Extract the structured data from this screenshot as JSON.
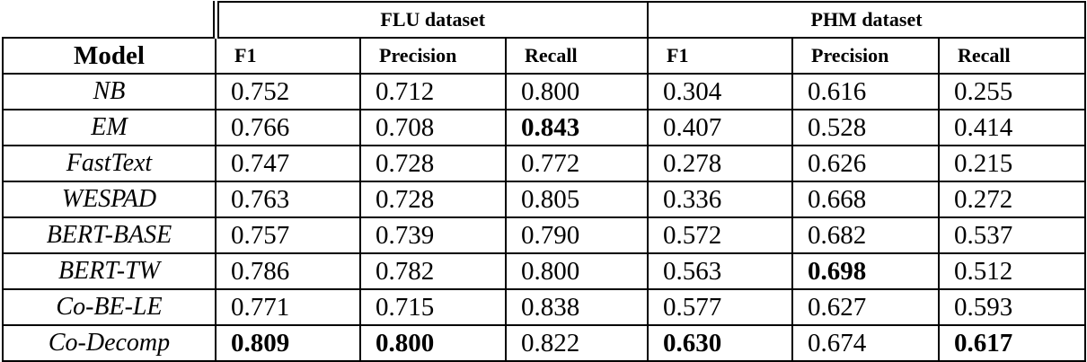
{
  "table": {
    "corner_label": "",
    "groups": {
      "flu": {
        "label": "FLU dataset"
      },
      "phm": {
        "label": "PHM dataset"
      }
    },
    "model_header": "Model",
    "columns": [
      "F1",
      "Precision",
      "Recall",
      "F1",
      "Precision",
      "Recall"
    ],
    "rows": [
      {
        "model": "NB",
        "cells": [
          {
            "v": "0.752"
          },
          {
            "v": "0.712"
          },
          {
            "v": "0.800"
          },
          {
            "v": "0.304"
          },
          {
            "v": "0.616"
          },
          {
            "v": "0.255"
          }
        ]
      },
      {
        "model": "EM",
        "cells": [
          {
            "v": "0.766"
          },
          {
            "v": "0.708"
          },
          {
            "v": "0.843",
            "bold": true
          },
          {
            "v": "0.407"
          },
          {
            "v": "0.528"
          },
          {
            "v": "0.414"
          }
        ]
      },
      {
        "model": "FastText",
        "cells": [
          {
            "v": "0.747"
          },
          {
            "v": "0.728"
          },
          {
            "v": "0.772"
          },
          {
            "v": "0.278"
          },
          {
            "v": "0.626"
          },
          {
            "v": "0.215"
          }
        ]
      },
      {
        "model": "WESPAD",
        "cells": [
          {
            "v": "0.763"
          },
          {
            "v": "0.728"
          },
          {
            "v": "0.805"
          },
          {
            "v": "0.336"
          },
          {
            "v": "0.668"
          },
          {
            "v": "0.272"
          }
        ]
      },
      {
        "model": "BERT-BASE",
        "cells": [
          {
            "v": "0.757"
          },
          {
            "v": "0.739"
          },
          {
            "v": "0.790"
          },
          {
            "v": "0.572"
          },
          {
            "v": "0.682"
          },
          {
            "v": "0.537"
          }
        ]
      },
      {
        "model": "BERT-TW",
        "cells": [
          {
            "v": "0.786"
          },
          {
            "v": "0.782"
          },
          {
            "v": "0.800"
          },
          {
            "v": "0.563"
          },
          {
            "v": "0.698",
            "bold": true
          },
          {
            "v": "0.512"
          }
        ]
      },
      {
        "model": "Co-BE-LE",
        "cells": [
          {
            "v": "0.771"
          },
          {
            "v": "0.715"
          },
          {
            "v": "0.838"
          },
          {
            "v": "0.577"
          },
          {
            "v": "0.627"
          },
          {
            "v": "0.593"
          }
        ]
      },
      {
        "model": "Co-Decomp",
        "cells": [
          {
            "v": "0.809",
            "bold": true
          },
          {
            "v": "0.800",
            "bold": true
          },
          {
            "v": "0.822"
          },
          {
            "v": "0.630",
            "bold": true
          },
          {
            "v": "0.674"
          },
          {
            "v": "0.617",
            "bold": true
          }
        ]
      }
    ]
  },
  "colors": {
    "text": "#000000",
    "border": "#000000",
    "background": "#ffffff"
  }
}
